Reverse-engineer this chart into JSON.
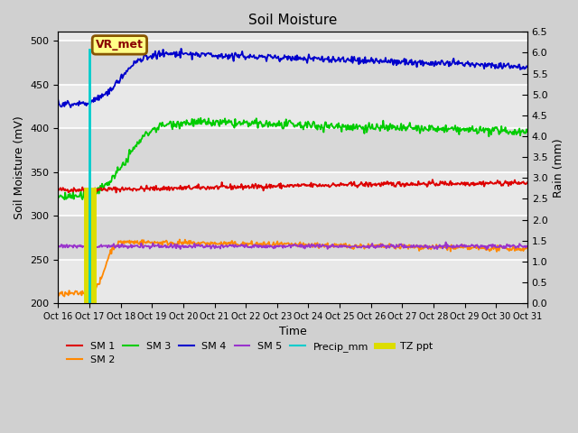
{
  "title": "Soil Moisture",
  "xlabel": "Time",
  "ylabel_left": "Soil Moisture (mV)",
  "ylabel_right": "Rain (mm)",
  "ylim_left": [
    200,
    510
  ],
  "ylim_right": [
    0.0,
    6.5
  ],
  "yticks_left": [
    200,
    250,
    300,
    350,
    400,
    450,
    500
  ],
  "yticks_right": [
    0.0,
    0.5,
    1.0,
    1.5,
    2.0,
    2.5,
    3.0,
    3.5,
    4.0,
    4.5,
    5.0,
    5.5,
    6.0,
    6.5
  ],
  "xtick_labels": [
    "Oct 16",
    "Oct 17",
    "Oct 18",
    "Oct 19",
    "Oct 20",
    "Oct 21",
    "Oct 22",
    "Oct 23",
    "Oct 24",
    "Oct 25",
    "Oct 26",
    "Oct 27",
    "Oct 28",
    "Oct 29",
    "Oct 30",
    "Oct 31"
  ],
  "outer_bg": "#d0d0d0",
  "inner_bg_dark": "#d8d8d8",
  "inner_bg_light": "#e8e8e8",
  "annotation_label": "VR_met",
  "sm1_color": "#dd0000",
  "sm2_color": "#ff8800",
  "sm3_color": "#00cc00",
  "sm4_color": "#0000cc",
  "sm5_color": "#9933cc",
  "precip_color": "#00cccc",
  "tz_color": "#dddd00",
  "n_days": 15,
  "random_seed": 42
}
